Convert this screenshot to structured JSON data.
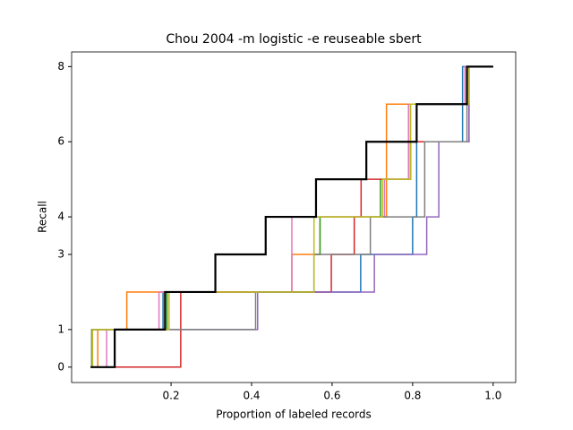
{
  "chart_data": {
    "type": "step",
    "title": "Chou 2004 -m logistic -e reuseable sbert",
    "x_label": "Proportion of labeled records",
    "y_label": "Recall",
    "xlim": [
      -0.047,
      1.056
    ],
    "ylim": [
      -0.41,
      8.39
    ],
    "xticks": [
      0.2,
      0.4,
      0.6,
      0.8,
      {
        "value": 1,
        "label": "1.0"
      }
    ],
    "yticks": [
      0,
      1,
      3,
      4,
      6,
      8
    ],
    "series": [
      {
        "color": "#1f77b4",
        "x": [
          0,
          0.004,
          0.18,
          0.671,
          0.8,
          0.81,
          0.924,
          1.0
        ],
        "values": [
          0,
          1,
          2,
          3,
          4,
          6,
          8,
          8
        ]
      },
      {
        "color": "#ff7f0e",
        "x": [
          0,
          0.018,
          0.09,
          0.5,
          0.57,
          0.735,
          0.94,
          1.0
        ],
        "values": [
          0,
          1,
          2,
          3,
          4,
          7,
          8,
          8
        ]
      },
      {
        "color": "#2ca02c",
        "x": [
          0,
          0.003,
          0.19,
          0.555,
          0.57,
          0.72,
          0.79,
          0.935,
          1.0
        ],
        "values": [
          0,
          1,
          2,
          3,
          4,
          5,
          7,
          8,
          8
        ]
      },
      {
        "color": "#d62728",
        "x": [
          0,
          0.224,
          0.598,
          0.655,
          0.672,
          0.795,
          0.94,
          1.0
        ],
        "values": [
          0,
          2,
          3,
          4,
          5,
          6,
          8,
          8
        ]
      },
      {
        "color": "#9467bd",
        "x": [
          0,
          0.004,
          0.415,
          0.705,
          0.835,
          0.865,
          0.94,
          1.0
        ],
        "values": [
          0,
          1,
          2,
          3,
          4,
          6,
          8,
          8
        ]
      },
      {
        "color": "#e377c2",
        "x": [
          0,
          0.04,
          0.17,
          0.5,
          0.73,
          0.79,
          0.93,
          1.0
        ],
        "values": [
          0,
          1,
          2,
          4,
          5,
          7,
          8,
          8
        ]
      },
      {
        "color": "#7f7f7f",
        "x": [
          0,
          0.003,
          0.41,
          0.555,
          0.695,
          0.83,
          0.935,
          1.0
        ],
        "values": [
          0,
          1,
          2,
          3,
          4,
          6,
          8,
          8
        ]
      },
      {
        "color": "#bcbd22",
        "x": [
          0,
          0.005,
          0.195,
          0.555,
          0.725,
          0.795,
          0.94,
          1.0
        ],
        "values": [
          0,
          1,
          2,
          4,
          5,
          7,
          8,
          8
        ]
      },
      {
        "color": "#000000",
        "x": [
          0,
          0.06,
          0.185,
          0.31,
          0.435,
          0.56,
          0.685,
          0.81,
          0.935,
          1.0
        ],
        "values": [
          0,
          1,
          2,
          3,
          4,
          5,
          6,
          7,
          8,
          8
        ]
      }
    ]
  }
}
